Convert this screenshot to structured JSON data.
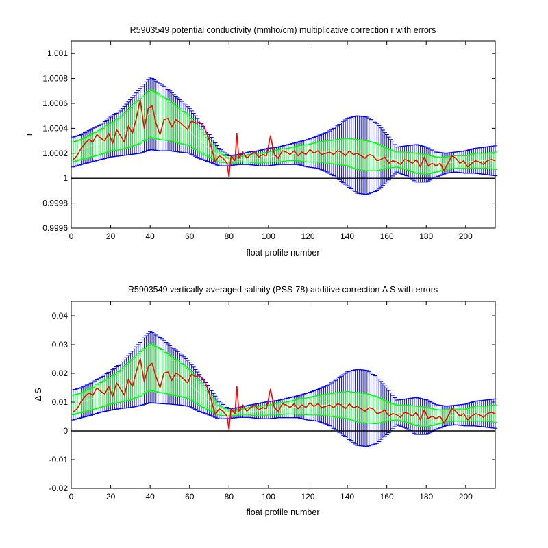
{
  "chart_data": [
    {
      "type": "line",
      "title": "R5903549 potential conductivity (mmho/cm) multiplicative correction r with errors",
      "xlabel": "float profile number",
      "ylabel": "r",
      "xlim": [
        0,
        215
      ],
      "ylim": [
        0.9996,
        1.0011
      ],
      "xticks": [
        0,
        20,
        40,
        60,
        80,
        100,
        120,
        140,
        160,
        180,
        200
      ],
      "xtick_labels": [
        "0",
        "20",
        "40",
        "60",
        "80",
        "100",
        "120",
        "140",
        "160",
        "180",
        "200"
      ],
      "yticks": [
        0.9996,
        0.9998,
        1.0,
        1.0002,
        1.0004,
        1.0006,
        1.0008,
        1.001
      ],
      "ytick_labels": [
        "0.9996",
        "0.9998",
        "1",
        "1.0002",
        "1.0004",
        "1.0006",
        "1.0008",
        "1.001"
      ],
      "reference_line": 1.0,
      "grid": false,
      "colors": {
        "wide_error": "#0000ff",
        "narrow_error": "#00ff00",
        "estimate": "#ff0000",
        "reference": "#000000"
      },
      "series": [
        {
          "x": [
            1,
            5,
            10,
            15,
            20,
            25,
            30,
            35,
            40,
            45,
            50,
            55,
            60,
            65,
            70,
            75,
            80,
            85,
            90,
            95,
            100,
            105,
            110,
            115,
            120,
            125,
            130,
            135,
            140,
            145,
            150,
            155,
            160,
            165,
            170,
            175,
            180,
            185,
            190,
            195,
            200,
            205,
            210,
            215
          ],
          "values": [
            1.00021,
            1.00023,
            1.00026,
            1.00029,
            1.00033,
            1.00036,
            1.00041,
            1.00046,
            1.00052,
            1.00049,
            1.00046,
            1.00042,
            1.00038,
            1.00031,
            1.00024,
            1.00017,
            1.00014,
            1.00015,
            1.00016,
            1.00016,
            1.00017,
            1.00018,
            1.00019,
            1.0002,
            1.0002,
            1.00021,
            1.00021,
            1.00021,
            1.00021,
            1.00019,
            1.00018,
            1.00017,
            1.00016,
            1.00015,
            1.00014,
            1.00012,
            1.00011,
            1.00011,
            1.00012,
            1.00013,
            1.00013,
            1.00014,
            1.00014,
            1.00014
          ],
          "error_wide": [
            0.00012,
            0.00012,
            0.00013,
            0.00014,
            0.00016,
            0.00018,
            0.00022,
            0.00026,
            0.00029,
            0.00027,
            0.00024,
            0.00021,
            0.00018,
            0.00015,
            0.00011,
            7e-05,
            4e-05,
            4e-05,
            5e-05,
            6e-05,
            7e-05,
            7e-05,
            8e-05,
            9e-05,
            0.00011,
            0.00013,
            0.00016,
            0.00021,
            0.00027,
            0.00031,
            0.00031,
            0.00027,
            0.00019,
            0.0001,
            0.00012,
            0.00015,
            0.00014,
            0.0001,
            8e-05,
            8e-05,
            9e-05,
            0.0001,
            0.00011,
            0.00012
          ],
          "error_narrow": [
            8e-05,
            8e-05,
            9e-05,
            0.0001,
            0.00011,
            0.00013,
            0.00016,
            0.00018,
            0.00019,
            0.00018,
            0.00016,
            0.00014,
            0.00012,
            0.0001,
            7e-05,
            4e-05,
            2e-05,
            2e-05,
            3e-05,
            4e-05,
            4e-05,
            5e-05,
            5e-05,
            6e-05,
            7e-05,
            8e-05,
            9e-05,
            0.0001,
            0.00011,
            0.00012,
            0.00012,
            0.00011,
            8e-05,
            6e-05,
            7e-05,
            8e-05,
            8e-05,
            6e-05,
            5e-05,
            5e-05,
            5e-05,
            6e-05,
            6e-05,
            7e-05
          ]
        },
        {
          "x": [
            1,
            3,
            5,
            7,
            9,
            11,
            13,
            15,
            17,
            19,
            21,
            23,
            25,
            27,
            29,
            31,
            33,
            35,
            37,
            39,
            41,
            43,
            45,
            47,
            49,
            51,
            53,
            55,
            57,
            59,
            61,
            63,
            65,
            67,
            69,
            71,
            73,
            75,
            77,
            79,
            80,
            81,
            83,
            84,
            85,
            87,
            89,
            91,
            93,
            95,
            97,
            99,
            101,
            103,
            105,
            107,
            109,
            111,
            113,
            115,
            117,
            119,
            121,
            123,
            125,
            127,
            129,
            131,
            133,
            135,
            137,
            139,
            141,
            143,
            145,
            147,
            149,
            151,
            153,
            155,
            157,
            159,
            161,
            163,
            165,
            167,
            169,
            171,
            173,
            175,
            177,
            179,
            181,
            183,
            185,
            187,
            189,
            191,
            193,
            195,
            197,
            199,
            201,
            203,
            205,
            207,
            209,
            211,
            213,
            215
          ],
          "values": [
            1.00015,
            1.00018,
            1.00024,
            1.00028,
            1.00031,
            1.00029,
            1.00035,
            1.00032,
            1.0003,
            1.00036,
            1.00028,
            1.00039,
            1.00034,
            1.00029,
            1.00042,
            1.00036,
            1.00048,
            1.00063,
            1.0004,
            1.00056,
            1.00058,
            1.00044,
            1.00035,
            1.00047,
            1.00048,
            1.00041,
            1.00047,
            1.00045,
            1.00042,
            1.00039,
            1.00046,
            1.00044,
            1.00045,
            1.00042,
            1.00035,
            1.00025,
            1.00013,
            1.00018,
            1.00016,
            1.00012,
            1.00001,
            1.00018,
            1.00014,
            1.00036,
            1.00016,
            1.00021,
            1.00016,
            1.00019,
            1.00021,
            1.00017,
            1.00019,
            1.00018,
            1.00034,
            1.00019,
            1.00016,
            1.00022,
            1.00021,
            1.00019,
            1.00022,
            1.00018,
            1.00021,
            1.00019,
            1.00023,
            1.0002,
            1.00022,
            1.00019,
            1.0002,
            1.00021,
            1.00019,
            1.00022,
            1.00021,
            1.00018,
            1.00022,
            1.00019,
            1.0002,
            1.00018,
            1.00016,
            1.00019,
            1.00018,
            1.00014,
            1.00015,
            1.00017,
            1.00012,
            1.00014,
            1.00013,
            1.00011,
            1.00015,
            1.00014,
            1.00012,
            1.00015,
            1.00009,
            1.00017,
            1.0001,
            1.00012,
            1.0001,
            1.00012,
            1.00006,
            1.00012,
            1.00018,
            1.00016,
            1.00012,
            1.00014,
            1.00009,
            1.00012,
            1.00014,
            1.00013,
            1.00011,
            1.00014,
            1.00015,
            1.00014
          ]
        }
      ]
    },
    {
      "type": "line",
      "title": "R5903549 vertically-averaged salinity (PSS-78) additive correction Δ S with errors",
      "xlabel": "float profile number",
      "ylabel": "Δ S",
      "xlim": [
        0,
        215
      ],
      "ylim": [
        -0.02,
        0.045
      ],
      "xticks": [
        0,
        20,
        40,
        60,
        80,
        100,
        120,
        140,
        160,
        180,
        200
      ],
      "xtick_labels": [
        "0",
        "20",
        "40",
        "60",
        "80",
        "100",
        "120",
        "140",
        "160",
        "180",
        "200"
      ],
      "yticks": [
        -0.02,
        -0.01,
        0,
        0.01,
        0.02,
        0.03,
        0.04
      ],
      "ytick_labels": [
        "-0.02",
        "-0.01",
        "0",
        "0.01",
        "0.02",
        "0.03",
        "0.04"
      ],
      "reference_line": 0,
      "grid": false,
      "colors": {
        "wide_error": "#0000ff",
        "narrow_error": "#00ff00",
        "estimate": "#ff0000",
        "reference": "#000000"
      },
      "series": [
        {
          "x": [
            1,
            5,
            10,
            15,
            20,
            25,
            30,
            35,
            40,
            45,
            50,
            55,
            60,
            65,
            70,
            75,
            80,
            85,
            90,
            95,
            100,
            105,
            110,
            115,
            120,
            125,
            130,
            135,
            140,
            145,
            150,
            155,
            160,
            165,
            170,
            175,
            180,
            185,
            190,
            195,
            200,
            205,
            210,
            215
          ],
          "values": [
            0.009,
            0.0098,
            0.011,
            0.0125,
            0.014,
            0.0155,
            0.0175,
            0.0198,
            0.0222,
            0.021,
            0.0195,
            0.018,
            0.0162,
            0.0132,
            0.0102,
            0.0072,
            0.006,
            0.0064,
            0.0068,
            0.0069,
            0.0072,
            0.0076,
            0.008,
            0.0084,
            0.0085,
            0.0089,
            0.009,
            0.009,
            0.009,
            0.0082,
            0.0078,
            0.0072,
            0.0068,
            0.0064,
            0.006,
            0.0052,
            0.0048,
            0.0048,
            0.0052,
            0.0055,
            0.0055,
            0.006,
            0.006,
            0.006
          ],
          "error_wide": [
            0.0052,
            0.0052,
            0.0056,
            0.006,
            0.0068,
            0.0077,
            0.0094,
            0.011,
            0.0124,
            0.0115,
            0.0102,
            0.009,
            0.0077,
            0.0064,
            0.0047,
            0.003,
            0.0017,
            0.0017,
            0.0021,
            0.0026,
            0.003,
            0.003,
            0.0034,
            0.0038,
            0.0047,
            0.0055,
            0.0068,
            0.009,
            0.0115,
            0.0132,
            0.0132,
            0.0115,
            0.0081,
            0.0043,
            0.0051,
            0.0064,
            0.006,
            0.0043,
            0.0034,
            0.0034,
            0.0038,
            0.0043,
            0.0047,
            0.0051
          ],
          "error_narrow": [
            0.0034,
            0.0034,
            0.0038,
            0.0043,
            0.0047,
            0.0055,
            0.0068,
            0.0077,
            0.0081,
            0.0077,
            0.0068,
            0.006,
            0.0051,
            0.0043,
            0.003,
            0.0017,
            0.0009,
            0.0009,
            0.0013,
            0.0017,
            0.0017,
            0.0021,
            0.0021,
            0.0026,
            0.003,
            0.0034,
            0.0038,
            0.0043,
            0.0047,
            0.0051,
            0.0051,
            0.0047,
            0.0034,
            0.0026,
            0.003,
            0.0034,
            0.0034,
            0.0026,
            0.0021,
            0.0021,
            0.0021,
            0.0026,
            0.0026,
            0.003
          ]
        },
        {
          "x": [
            1,
            3,
            5,
            7,
            9,
            11,
            13,
            15,
            17,
            19,
            21,
            23,
            25,
            27,
            29,
            31,
            33,
            35,
            37,
            39,
            41,
            43,
            45,
            47,
            49,
            51,
            53,
            55,
            57,
            59,
            61,
            63,
            65,
            67,
            69,
            71,
            73,
            75,
            77,
            79,
            80,
            81,
            83,
            84,
            85,
            87,
            89,
            91,
            93,
            95,
            97,
            99,
            101,
            103,
            105,
            107,
            109,
            111,
            113,
            115,
            117,
            119,
            121,
            123,
            125,
            127,
            129,
            131,
            133,
            135,
            137,
            139,
            141,
            143,
            145,
            147,
            149,
            151,
            153,
            155,
            157,
            159,
            161,
            163,
            165,
            167,
            169,
            171,
            173,
            175,
            177,
            179,
            181,
            183,
            185,
            187,
            189,
            191,
            193,
            195,
            197,
            199,
            201,
            203,
            205,
            207,
            209,
            211,
            213,
            215
          ],
          "values": [
            0.0065,
            0.0077,
            0.0102,
            0.012,
            0.0132,
            0.0124,
            0.015,
            0.0137,
            0.0128,
            0.0154,
            0.012,
            0.0167,
            0.0145,
            0.0124,
            0.018,
            0.0154,
            0.0205,
            0.0252,
            0.0171,
            0.0222,
            0.0235,
            0.0188,
            0.015,
            0.0201,
            0.0205,
            0.0175,
            0.0201,
            0.0192,
            0.018,
            0.0167,
            0.0197,
            0.0188,
            0.0192,
            0.018,
            0.015,
            0.0107,
            0.0056,
            0.0077,
            0.0068,
            0.0051,
            0.0004,
            0.0077,
            0.006,
            0.0154,
            0.0068,
            0.009,
            0.0068,
            0.0081,
            0.009,
            0.0073,
            0.0081,
            0.0077,
            0.0145,
            0.0081,
            0.0068,
            0.0094,
            0.009,
            0.0081,
            0.0094,
            0.0077,
            0.009,
            0.0081,
            0.0098,
            0.0085,
            0.0094,
            0.0081,
            0.0085,
            0.009,
            0.0081,
            0.0094,
            0.009,
            0.0077,
            0.0094,
            0.0081,
            0.0085,
            0.0077,
            0.0068,
            0.0081,
            0.0077,
            0.006,
            0.0064,
            0.0073,
            0.0051,
            0.006,
            0.0056,
            0.0047,
            0.0064,
            0.006,
            0.0051,
            0.0064,
            0.0038,
            0.0073,
            0.0043,
            0.0051,
            0.0043,
            0.0051,
            0.0026,
            0.0051,
            0.0077,
            0.0068,
            0.0051,
            0.006,
            0.0038,
            0.0051,
            0.006,
            0.0056,
            0.0047,
            0.006,
            0.0064,
            0.006
          ]
        }
      ]
    }
  ]
}
